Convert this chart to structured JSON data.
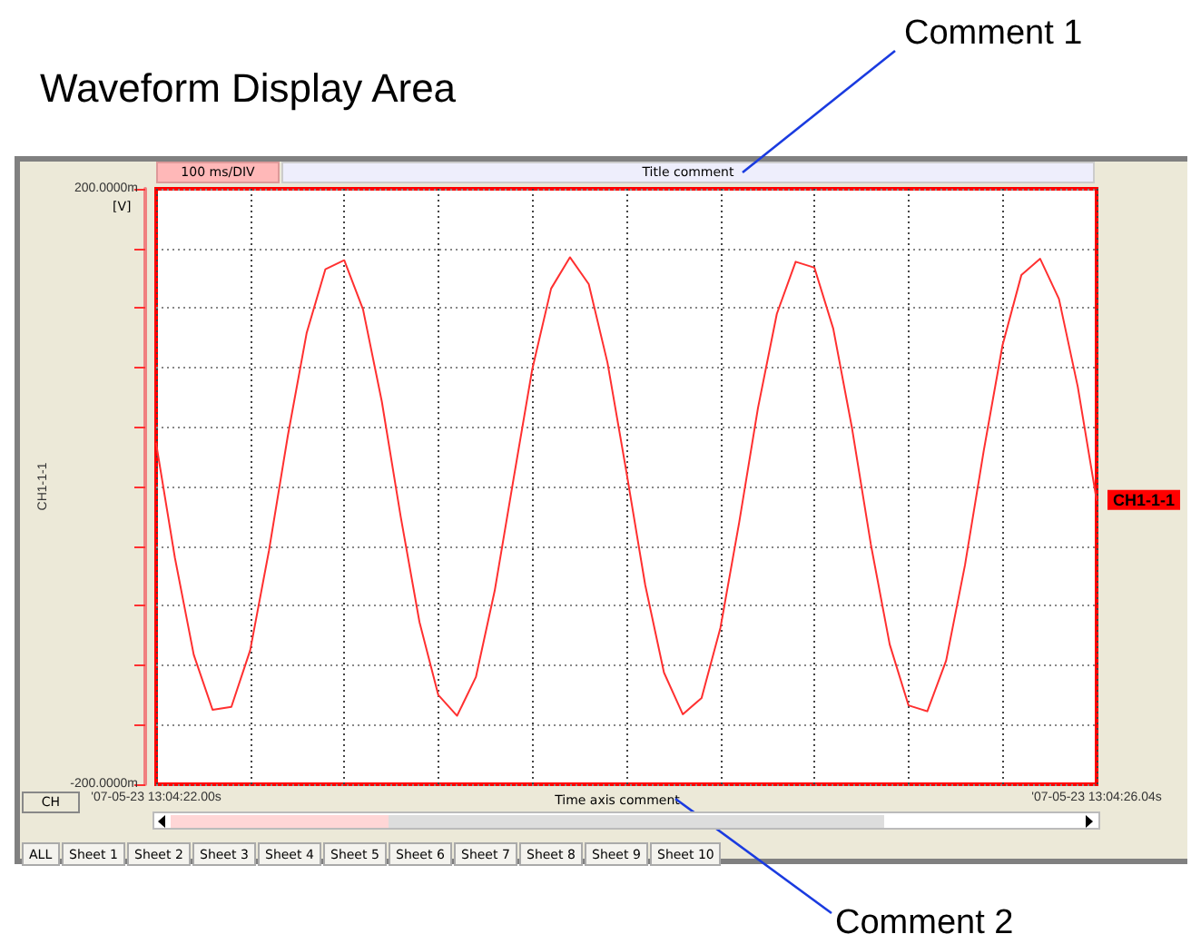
{
  "chart_data": {
    "type": "line",
    "title": "Waveform Display Area",
    "subtitle": "Title comment",
    "xlabel": "Time axis comment",
    "ylabel": "CH1-1-1",
    "annotations": [
      "Comment 1",
      "Comment 2",
      "100 ms/DIV",
      "[V]",
      "CH",
      "ALL",
      "Sheet 1",
      "Sheet 2",
      "Sheet 3",
      "Sheet 4",
      "Sheet 5",
      "Sheet 6",
      "Sheet 7",
      "Sheet 8",
      "Sheet 9",
      "Sheet 10"
    ],
    "categories": [
      "'07-05-23 13:04:22.00s",
      null,
      null,
      null,
      null,
      null,
      null,
      null,
      null,
      null,
      null,
      null,
      null,
      null,
      null,
      null,
      null,
      null,
      null,
      null,
      null,
      null,
      null,
      null,
      null,
      null,
      null,
      null,
      null,
      null,
      null,
      null,
      null,
      null,
      null,
      null,
      null,
      null,
      null,
      null,
      null,
      null,
      null,
      null,
      null,
      null,
      null,
      null,
      null,
      null,
      "'07-05-23 13:04:26.04s"
    ],
    "series": [
      {
        "name": "CH1-1-1",
        "color": "#ff3030",
        "values": [
          29,
          -48,
          -113,
          -150,
          -148,
          -110,
          -43,
          34,
          103,
          146,
          152,
          119,
          57,
          -20,
          -91,
          -140,
          -154,
          -128,
          -70,
          5,
          79,
          133,
          154,
          136,
          83,
          10,
          -66,
          -125,
          -153,
          -142,
          -95,
          -24,
          53,
          116,
          151,
          147,
          106,
          39,
          -39,
          -106,
          -147,
          -151,
          -117,
          -53,
          24,
          95,
          142,
          153,
          126,
          67,
          -9
        ]
      }
    ],
    "ylim": [
      -200,
      200
    ],
    "yticks": [
      {
        "value": -200,
        "label": "-200.0000m"
      },
      {
        "value": -160,
        "label": null
      },
      {
        "value": -120,
        "label": null
      },
      {
        "value": -80,
        "label": null
      },
      {
        "value": -40,
        "label": null
      },
      {
        "value": 0,
        "label": null
      },
      {
        "value": 40,
        "label": null
      },
      {
        "value": 80,
        "label": null
      },
      {
        "value": 120,
        "label": null
      },
      {
        "value": 160,
        "label": null
      },
      {
        "value": 200,
        "label": "200.0000m"
      }
    ],
    "grid": true,
    "legend": false,
    "marker": "none",
    "line_style": "solid"
  }
}
